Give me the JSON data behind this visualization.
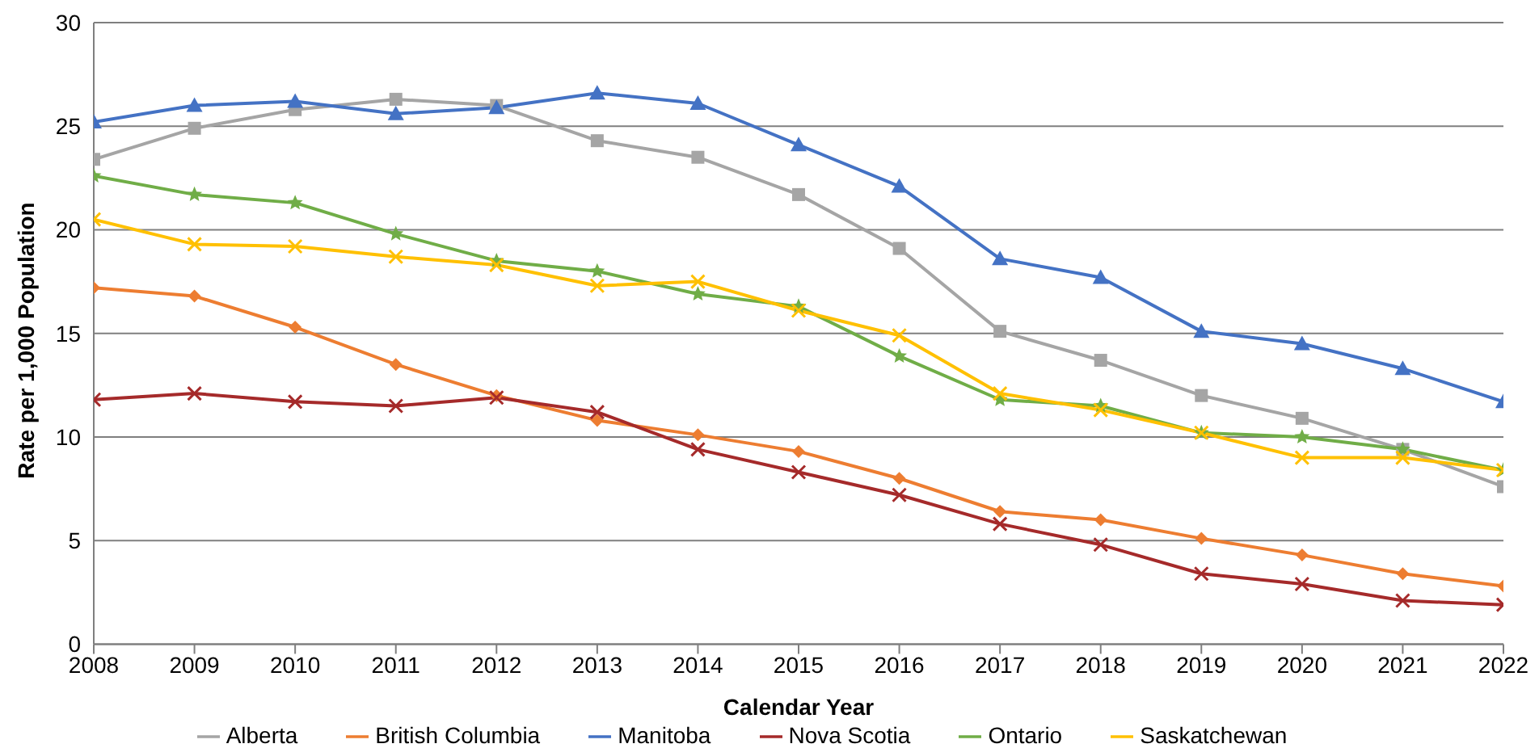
{
  "chart_data": {
    "type": "line",
    "xlabel": "Calendar Year",
    "ylabel": "Rate per 1,000 Population",
    "x": [
      2008,
      2009,
      2010,
      2011,
      2012,
      2013,
      2014,
      2015,
      2016,
      2017,
      2018,
      2019,
      2020,
      2021,
      2022
    ],
    "xlim": [
      2008,
      2022
    ],
    "xticks": [
      2008,
      2009,
      2010,
      2011,
      2012,
      2013,
      2014,
      2015,
      2016,
      2017,
      2018,
      2019,
      2020,
      2021,
      2022
    ],
    "ylim": [
      0,
      30
    ],
    "yticks": [
      0,
      5,
      10,
      15,
      20,
      25,
      30
    ],
    "grid": "y",
    "legend": "bottom",
    "series": [
      {
        "name": "Alberta",
        "color": "#a5a5a5",
        "marker": "square",
        "values": [
          23.4,
          24.9,
          25.8,
          26.3,
          26.0,
          24.3,
          23.5,
          21.7,
          19.1,
          15.1,
          13.7,
          12.0,
          10.9,
          9.4,
          7.6
        ]
      },
      {
        "name": "British Columbia",
        "color": "#ed7d31",
        "marker": "diamond",
        "values": [
          17.2,
          16.8,
          15.3,
          13.5,
          12.0,
          10.8,
          10.1,
          9.3,
          8.0,
          6.4,
          6.0,
          5.1,
          4.3,
          3.4,
          2.8
        ]
      },
      {
        "name": "Manitoba",
        "color": "#4472c4",
        "marker": "triangle",
        "values": [
          25.2,
          26.0,
          26.2,
          25.6,
          25.9,
          26.6,
          26.1,
          24.1,
          22.1,
          18.6,
          17.7,
          15.1,
          14.5,
          13.3,
          11.7
        ]
      },
      {
        "name": "Nova Scotia",
        "color": "#a52a2a",
        "marker": "cross",
        "values": [
          11.8,
          12.1,
          11.7,
          11.5,
          11.9,
          11.2,
          9.4,
          8.3,
          7.2,
          5.8,
          4.8,
          3.4,
          2.9,
          2.1,
          1.9
        ]
      },
      {
        "name": "Ontario",
        "color": "#70ad47",
        "marker": "star",
        "values": [
          22.6,
          21.7,
          21.3,
          19.8,
          18.5,
          18.0,
          16.9,
          16.3,
          13.9,
          11.8,
          11.5,
          10.2,
          10.0,
          9.4,
          8.4
        ]
      },
      {
        "name": "Saskatchewan",
        "color": "#ffc000",
        "marker": "cross",
        "values": [
          20.5,
          19.3,
          19.2,
          18.7,
          18.3,
          17.3,
          17.5,
          16.1,
          14.9,
          12.1,
          11.3,
          10.2,
          9.0,
          9.0,
          8.4
        ]
      }
    ]
  }
}
